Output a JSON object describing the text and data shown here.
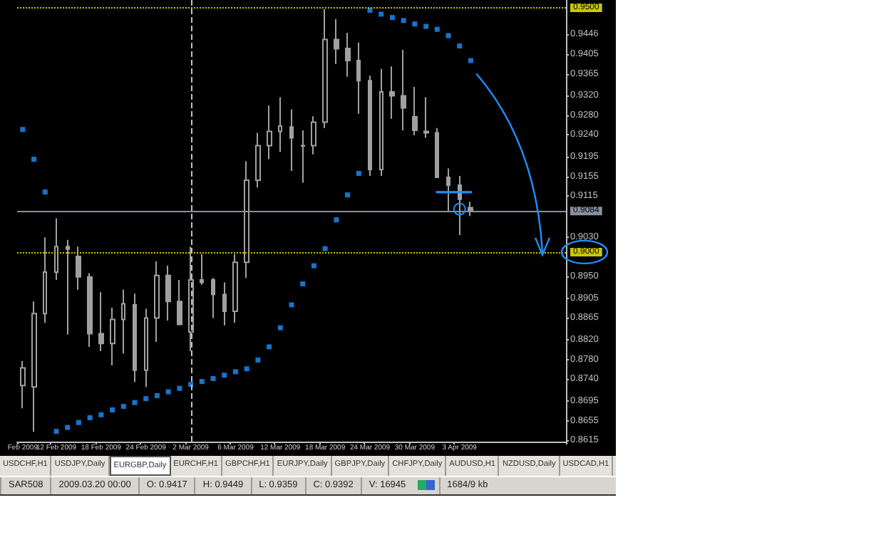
{
  "chart_data": {
    "type": "candlestick",
    "categories": [
      "Feb 2009",
      null,
      null,
      "12 Feb 2009",
      null,
      null,
      null,
      "18 Feb 2009",
      null,
      null,
      null,
      "24 Feb 2009",
      null,
      null,
      null,
      "2 Mar 2009",
      null,
      null,
      null,
      "6 Mar 2009",
      null,
      null,
      null,
      "12 Mar 2009",
      null,
      null,
      null,
      "18 Mar 2009",
      null,
      null,
      null,
      "24 Mar 2009",
      null,
      null,
      null,
      "30 Mar 2009",
      null,
      null,
      null,
      "3 Apr 2009",
      null,
      null,
      null,
      null,
      null,
      null,
      null,
      null,
      null
    ],
    "series": [
      {
        "type": "candlestick",
        "color": "#a0a0a0",
        "ohlc": [
          [
            0.8727,
            0.8777,
            0.868,
            0.8763
          ],
          [
            0.8724,
            0.8899,
            0.8632,
            0.8874
          ],
          [
            0.8874,
            0.903,
            0.8855,
            0.8959
          ],
          [
            0.8959,
            0.9069,
            0.8943,
            0.9011
          ],
          [
            0.9011,
            0.9025,
            0.8831,
            0.9006
          ],
          [
            0.8991,
            0.9011,
            0.8923,
            0.8949
          ],
          [
            0.8949,
            0.8957,
            0.8806,
            0.8833
          ],
          [
            0.8833,
            0.8918,
            0.8797,
            0.8813
          ],
          [
            0.8813,
            0.8886,
            0.8768,
            0.8862
          ],
          [
            0.8862,
            0.8923,
            0.8792,
            0.8894
          ],
          [
            0.8892,
            0.8915,
            0.8734,
            0.8758
          ],
          [
            0.8758,
            0.8884,
            0.8724,
            0.8865
          ],
          [
            0.8865,
            0.8981,
            0.8816,
            0.8952
          ],
          [
            0.8952,
            0.8972,
            0.886,
            0.8899
          ],
          [
            0.8899,
            0.8943,
            0.885,
            0.8852
          ],
          [
            0.8836,
            0.9011,
            0.8797,
            0.8943
          ],
          [
            0.8943,
            0.8996,
            0.8933,
            0.8938
          ],
          [
            0.8943,
            0.8947,
            0.8865,
            0.8913
          ],
          [
            0.8913,
            0.8938,
            0.885,
            0.8879
          ],
          [
            0.8879,
            0.8996,
            0.8855,
            0.8979
          ],
          [
            0.8979,
            0.9186,
            0.8947,
            0.9147
          ],
          [
            0.9147,
            0.9244,
            0.9132,
            0.9218
          ],
          [
            0.9218,
            0.93,
            0.919,
            0.9247
          ],
          [
            0.9247,
            0.9317,
            0.9205,
            0.9258
          ],
          [
            0.9256,
            0.9292,
            0.9166,
            0.9234
          ],
          [
            0.9217,
            0.9249,
            0.9142,
            0.9218
          ],
          [
            0.9218,
            0.9278,
            0.92,
            0.9266
          ],
          [
            0.9266,
            0.9497,
            0.9254,
            0.9435
          ],
          [
            0.9435,
            0.9477,
            0.9385,
            0.9416
          ],
          [
            0.9417,
            0.9449,
            0.9359,
            0.9392
          ],
          [
            0.9392,
            0.9429,
            0.9283,
            0.9351
          ],
          [
            0.9351,
            0.9361,
            0.9156,
            0.9169
          ],
          [
            0.9169,
            0.9375,
            0.9156,
            0.9328
          ],
          [
            0.9328,
            0.938,
            0.9273,
            0.932
          ],
          [
            0.932,
            0.9414,
            0.9249,
            0.9295
          ],
          [
            0.9277,
            0.9338,
            0.9239,
            0.9249
          ],
          [
            0.9247,
            0.9317,
            0.9234,
            0.9244
          ],
          [
            0.9244,
            0.9254,
            0.9152,
            0.9153
          ],
          [
            0.9153,
            0.9171,
            0.9084,
            0.9137
          ],
          [
            0.9137,
            0.9156,
            0.9035,
            0.9108
          ],
          [
            0.9091,
            0.9103,
            0.9074,
            0.9084
          ],
          null,
          null,
          null,
          null,
          null,
          null,
          null,
          null
        ]
      },
      {
        "type": "scatter",
        "color": "#1e90ff",
        "marker": "square",
        "values": [
          0.9251,
          0.919,
          0.9123,
          0.8633,
          0.8641,
          0.8651,
          0.8661,
          0.8667,
          0.8677,
          0.8684,
          0.8692,
          0.87,
          0.8706,
          0.8714,
          0.8721,
          0.8729,
          0.8735,
          0.8741,
          0.8748,
          0.8755,
          0.8761,
          0.8779,
          0.8806,
          0.8845,
          0.8892,
          0.8935,
          0.8972,
          0.9007,
          0.9066,
          0.9117,
          0.9161,
          0.9495,
          0.9487,
          0.948,
          0.9474,
          0.9467,
          0.9462,
          0.9456,
          0.9443,
          0.9422,
          0.9392,
          null,
          null,
          null,
          null,
          null,
          null,
          null,
          null
        ]
      }
    ],
    "ylim": [
      0.8612,
      0.9516
    ],
    "yticks": [
      0.9446,
      0.9405,
      0.9365,
      {
        "value": 0.932,
        "label": "0.9320"
      },
      {
        "value": 0.928,
        "label": "0.9280"
      },
      {
        "value": 0.924,
        "label": "0.9240"
      },
      0.9195,
      0.9155,
      0.9115,
      {
        "value": 0.903,
        "label": "0.9030"
      },
      {
        "value": 0.895,
        "label": "0.8950"
      },
      0.8905,
      0.8865,
      {
        "value": 0.882,
        "label": "0.8820"
      },
      {
        "value": 0.878,
        "label": "0.8780"
      },
      {
        "value": 0.874,
        "label": "0.8740"
      },
      0.8695,
      0.8655,
      0.8615
    ],
    "ref_lines": [
      {
        "axis": "y",
        "value": 0.95,
        "label": "0.9500",
        "color": "#c8c800",
        "line_style": "dotted"
      },
      {
        "axis": "y",
        "value": 0.9,
        "label": "0.9000",
        "color": "#c8c800",
        "line_style": "dotted"
      },
      {
        "axis": "y",
        "value": 0.9084,
        "label": "0.9084",
        "color": "#8890a0",
        "line_style": "solid"
      },
      {
        "axis": "x",
        "value": "2 Mar 2009",
        "label": null,
        "color": "#c0c0c0",
        "line_style": "dashed"
      }
    ],
    "grid": false,
    "annotations": [
      "USDCHF,H1",
      "USDJPY,Daily",
      "EURGBP,Daily",
      "EURCHF,H1",
      "GBPCHF,H1",
      "EURJPY,Daily",
      "GBPJPY,Daily",
      "CHFJPY,Daily",
      "AUDUSD,H1",
      "NZDUSD,Daily",
      "USDCAD,H1",
      "SAR508",
      "2009.03.20 00:00",
      "O: 0.9417",
      "H: 0.9449",
      "L: 0.9359",
      "C: 0.9392",
      "V: 16945",
      "1684/9 kb"
    ]
  }
}
